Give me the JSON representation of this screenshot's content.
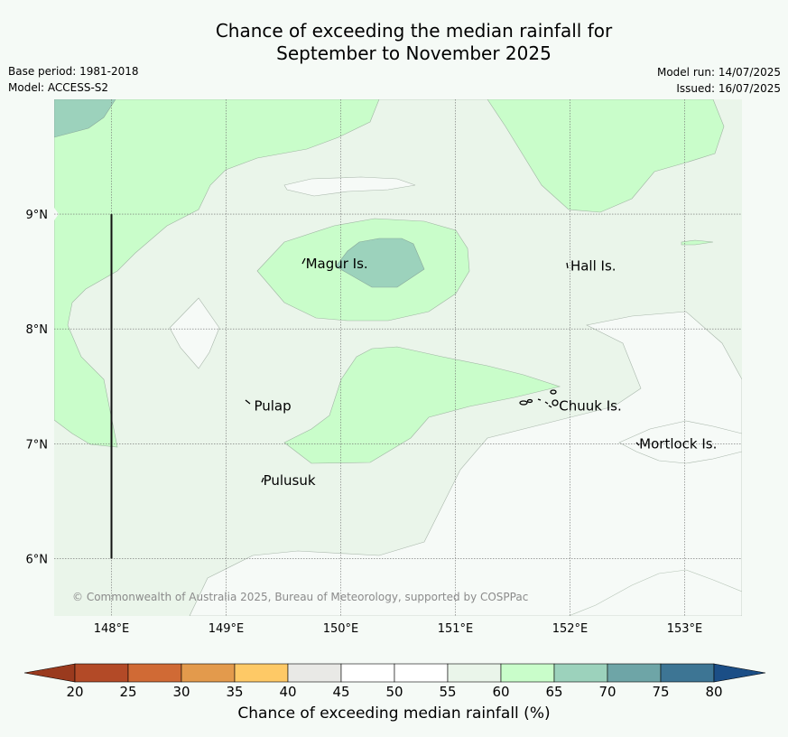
{
  "title": {
    "line1": "Chance of exceeding the median rainfall for",
    "line2": "September to November 2025"
  },
  "meta": {
    "base_period": "Base period: 1981-2018",
    "model": "Model: ACCESS-S2",
    "model_run": "Model run: 14/07/2025",
    "issued": "Issued: 16/07/2025"
  },
  "copyright": "© Commonwealth of Australia 2025, Bureau of Meteorology, supported by COSPPac",
  "map": {
    "lon_range": [
      147.5,
      153.5
    ],
    "lat_range": [
      5.5,
      10.0
    ],
    "lon_ticks": [
      {
        "value": 148,
        "label": "148°E"
      },
      {
        "value": 149,
        "label": "149°E"
      },
      {
        "value": 150,
        "label": "150°E"
      },
      {
        "value": 151,
        "label": "151°E"
      },
      {
        "value": 152,
        "label": "152°E"
      },
      {
        "value": 153,
        "label": "153°E"
      }
    ],
    "lat_ticks": [
      {
        "value": 6,
        "label": "6°N"
      },
      {
        "value": 7,
        "label": "7°N"
      },
      {
        "value": 8,
        "label": "8°N"
      },
      {
        "value": 9,
        "label": "9°N"
      }
    ],
    "places": [
      {
        "name": "Magur Is.",
        "lon": 149.67,
        "lat": 8.57
      },
      {
        "name": "Hall Is.",
        "lon": 151.98,
        "lat": 8.55
      },
      {
        "name": "Pulap",
        "lon": 149.22,
        "lat": 7.33
      },
      {
        "name": "Chuuk Is.",
        "lon": 151.88,
        "lat": 7.33
      },
      {
        "name": "Mortlock Is.",
        "lon": 152.58,
        "lat": 7.0
      },
      {
        "name": "Pulusuk",
        "lon": 149.3,
        "lat": 6.68
      }
    ],
    "meridian_line": {
      "lon": 148,
      "lat_from": 6.0,
      "lat_to": 9.0
    }
  },
  "colorbar": {
    "title": "Chance of exceeding median rainfall (%)",
    "ticks": [
      "20",
      "25",
      "30",
      "35",
      "40",
      "45",
      "50",
      "55",
      "60",
      "65",
      "70",
      "75",
      "80"
    ],
    "colors": [
      "#b34a27",
      "#d06a35",
      "#e39a4c",
      "#fec966",
      "#e9e9e6",
      "#ffffff",
      "#ffffff",
      "#eaf5ea",
      "#c9fdca",
      "#9cd2bc",
      "#6ea5a7",
      "#3d7594"
    ],
    "under_color": "#9a3a1e",
    "over_color": "#1b4e86"
  }
}
